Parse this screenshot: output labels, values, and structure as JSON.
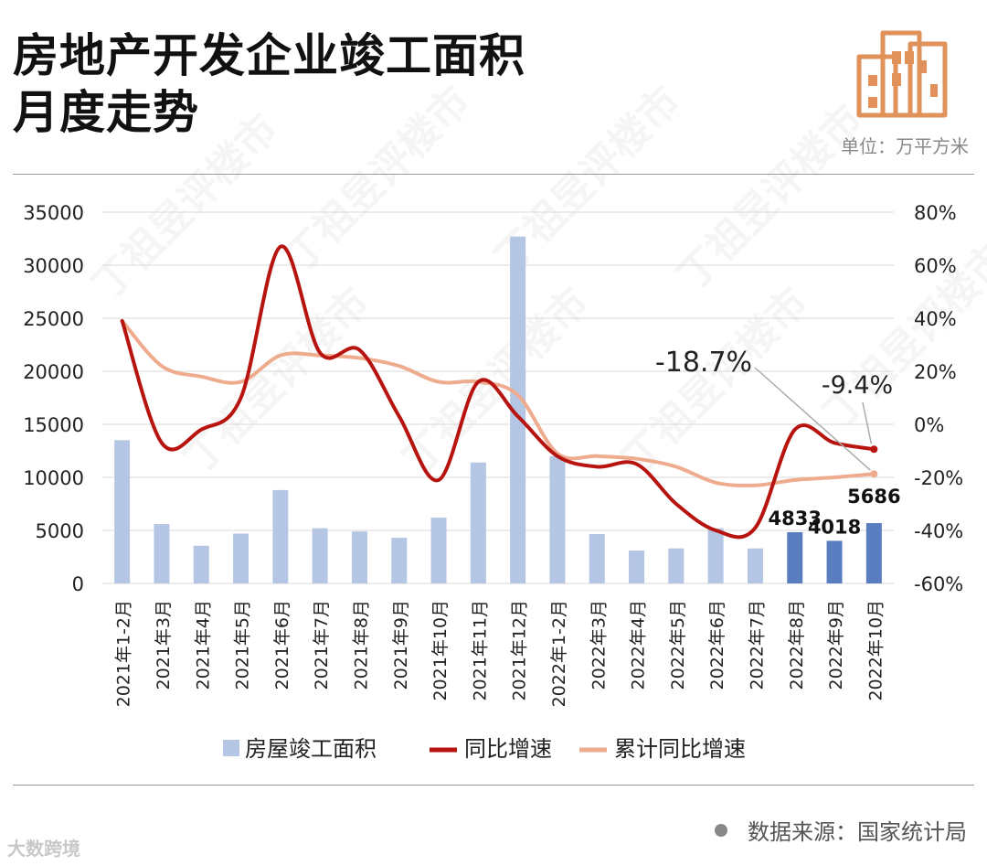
{
  "header": {
    "title_line1": "房地产开发企业竣工面积",
    "title_line2": "月度走势",
    "unit": "单位：万平方米"
  },
  "footer": {
    "source": "数据来源：国家统计局",
    "logo_text": "大数跨境"
  },
  "colors": {
    "bar_light": "#b4c6e3",
    "bar_dark": "#5a7dbf",
    "yoy_line": "#b7130f",
    "cum_line": "#eeab8e",
    "icon_orange": "#e0925a"
  },
  "chart_data": {
    "type": "bar+line",
    "categories": [
      "2021年1-2月",
      "2021年3月",
      "2021年4月",
      "2021年5月",
      "2021年6月",
      "2021年7月",
      "2021年8月",
      "2021年9月",
      "2021年10月",
      "2021年11月",
      "2021年12月",
      "2022年1-2月",
      "2022年3月",
      "2022年4月",
      "2022年5月",
      "2022年6月",
      "2022年7月",
      "2022年8月",
      "2022年9月",
      "2022年10月"
    ],
    "left_axis": {
      "min": 0,
      "max": 35000,
      "ticks": [
        0,
        5000,
        10000,
        15000,
        20000,
        25000,
        30000,
        35000
      ]
    },
    "right_axis": {
      "min": -60,
      "max": 80,
      "ticks": [
        "-60%",
        "-40%",
        "-20%",
        "0%",
        "20%",
        "40%",
        "60%",
        "80%"
      ]
    },
    "series": [
      {
        "name": "房屋竣工面积",
        "type": "bar",
        "axis": "left",
        "values": [
          13500,
          5600,
          3550,
          4700,
          8800,
          5200,
          4900,
          4300,
          6200,
          11400,
          32700,
          12000,
          4650,
          3100,
          3300,
          5200,
          3300,
          4833,
          4018,
          5686
        ],
        "highlight_from_index": 17
      },
      {
        "name": "同比增速",
        "type": "line",
        "axis": "right",
        "values": [
          39,
          -7,
          -2,
          10,
          67,
          27,
          28,
          3,
          -21,
          16,
          3,
          -12,
          -16,
          -15,
          -30,
          -40,
          -39,
          -2,
          -7,
          -9.4
        ]
      },
      {
        "name": "累计同比增速",
        "type": "line",
        "axis": "right",
        "values": [
          39,
          22,
          18,
          16,
          26,
          26,
          25,
          22,
          16,
          16,
          11,
          -11,
          -12,
          -13,
          -16,
          -22,
          -23,
          -21,
          -20,
          -18.7
        ]
      }
    ],
    "bar_labels": [
      {
        "index": 17,
        "text": "4833"
      },
      {
        "index": 18,
        "text": "4018"
      },
      {
        "index": 19,
        "text": "5686"
      }
    ],
    "annotations": [
      {
        "text": "-18.7%",
        "target_index": 19,
        "series": "累计同比增速"
      },
      {
        "text": "-9.4%",
        "target_index": 19,
        "series": "同比增速"
      }
    ],
    "legend": [
      "房屋竣工面积",
      "同比增速",
      "累计同比增速"
    ],
    "legend_position": "bottom",
    "watermark": "丁祖昱评楼市"
  }
}
